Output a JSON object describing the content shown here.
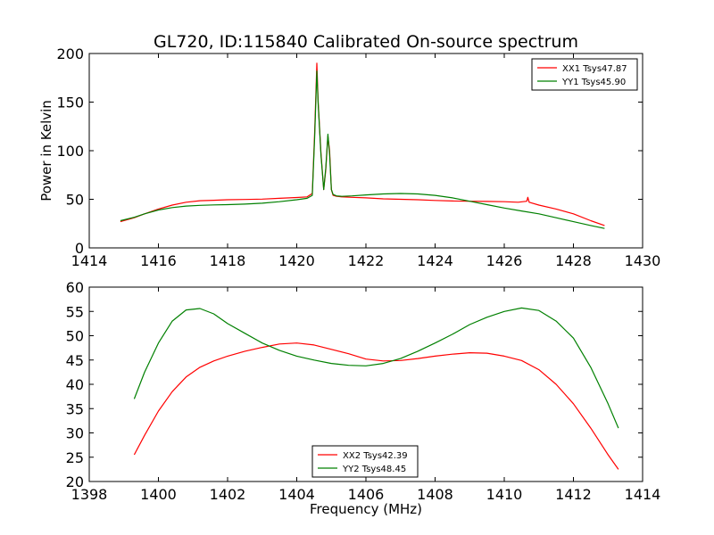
{
  "chart_data": [
    {
      "type": "line",
      "title": "GL720, ID:115840 Calibrated On-source spectrum",
      "ylabel": "Power in Kelvin",
      "xlabel": "",
      "xlim": [
        1414,
        1430
      ],
      "ylim": [
        0,
        200
      ],
      "xticks": [
        "1414",
        "1416",
        "1418",
        "1420",
        "1422",
        "1424",
        "1426",
        "1428",
        "1430"
      ],
      "yticks": [
        "0",
        "50",
        "100",
        "150",
        "200"
      ],
      "legend_position": "top-right",
      "series": [
        {
          "name": "XX1 Tsys47.87",
          "color": "#ff0000",
          "x": [
            1414.9,
            1415.3,
            1415.6,
            1416.0,
            1416.4,
            1416.8,
            1417.2,
            1417.6,
            1418.0,
            1418.5,
            1419.0,
            1419.5,
            1420.0,
            1420.3,
            1420.45,
            1420.52,
            1420.58,
            1420.62,
            1420.7,
            1420.78,
            1420.84,
            1420.9,
            1420.95,
            1421.0,
            1421.05,
            1421.15,
            1421.3,
            1421.6,
            1422.0,
            1422.5,
            1423.0,
            1423.5,
            1424.0,
            1424.5,
            1425.0,
            1425.5,
            1426.0,
            1426.4,
            1426.65,
            1426.68,
            1426.72,
            1427.0,
            1427.5,
            1428.0,
            1428.5,
            1428.9
          ],
          "y": [
            27,
            31,
            35,
            40,
            44,
            47,
            48.5,
            49,
            49.5,
            49.8,
            50.2,
            51,
            51.8,
            52.5,
            56,
            120,
            190,
            150,
            98,
            60,
            80,
            115,
            100,
            60,
            54,
            53,
            52.5,
            52,
            51.5,
            50.5,
            50,
            49.5,
            48.8,
            48.3,
            48,
            47.8,
            47.5,
            47,
            48,
            52,
            47,
            44,
            40,
            35,
            28,
            23
          ]
        },
        {
          "name": "YY1 Tsys45.90",
          "color": "#008000",
          "x": [
            1414.9,
            1415.3,
            1415.6,
            1416.0,
            1416.4,
            1416.8,
            1417.2,
            1417.6,
            1418.0,
            1418.5,
            1419.0,
            1419.5,
            1420.0,
            1420.3,
            1420.45,
            1420.52,
            1420.58,
            1420.62,
            1420.7,
            1420.78,
            1420.84,
            1420.9,
            1420.95,
            1421.0,
            1421.05,
            1421.15,
            1421.3,
            1421.6,
            1422.0,
            1422.5,
            1423.0,
            1423.5,
            1424.0,
            1424.5,
            1425.0,
            1425.5,
            1426.0,
            1426.5,
            1427.0,
            1427.5,
            1428.0,
            1428.5,
            1428.9
          ],
          "y": [
            28,
            31.5,
            35,
            39,
            41.5,
            43,
            43.8,
            44.2,
            44.5,
            45,
            46,
            47.5,
            49.5,
            51,
            54,
            115,
            182,
            148,
            96,
            60,
            82,
            117,
            96,
            60,
            55,
            53.5,
            53,
            53.5,
            54.5,
            55.5,
            56,
            55.5,
            54,
            51.5,
            48,
            44.5,
            41,
            38,
            35,
            31,
            27,
            23,
            20
          ]
        }
      ]
    },
    {
      "type": "line",
      "title": "",
      "xlabel": "Frequency (MHz)",
      "ylabel": "",
      "xlim": [
        1398,
        1414
      ],
      "ylim": [
        20,
        60
      ],
      "xticks": [
        "1398",
        "1400",
        "1402",
        "1404",
        "1406",
        "1408",
        "1410",
        "1412",
        "1414"
      ],
      "yticks": [
        "20",
        "25",
        "30",
        "35",
        "40",
        "45",
        "50",
        "55",
        "60"
      ],
      "legend_position": "lower-center",
      "series": [
        {
          "name": "XX2 Tsys42.39",
          "color": "#ff0000",
          "x": [
            1399.3,
            1399.6,
            1400.0,
            1400.4,
            1400.8,
            1401.2,
            1401.6,
            1402.0,
            1402.5,
            1403.0,
            1403.5,
            1404.0,
            1404.5,
            1405.0,
            1405.5,
            1406.0,
            1406.5,
            1407.0,
            1407.5,
            1408.0,
            1408.5,
            1409.0,
            1409.5,
            1410.0,
            1410.5,
            1411.0,
            1411.5,
            1412.0,
            1412.5,
            1413.0,
            1413.3
          ],
          "y": [
            25.5,
            29.5,
            34.5,
            38.5,
            41.5,
            43.5,
            44.8,
            45.8,
            46.8,
            47.6,
            48.3,
            48.5,
            48.1,
            47.2,
            46.3,
            45.2,
            44.8,
            44.9,
            45.3,
            45.8,
            46.2,
            46.5,
            46.4,
            45.8,
            44.9,
            43,
            40,
            36,
            31,
            25.5,
            22.5
          ]
        },
        {
          "name": "YY2 Tsys48.45",
          "color": "#008000",
          "x": [
            1399.3,
            1399.6,
            1400.0,
            1400.4,
            1400.8,
            1401.2,
            1401.6,
            1402.0,
            1402.5,
            1403.0,
            1403.5,
            1404.0,
            1404.5,
            1405.0,
            1405.5,
            1406.0,
            1406.5,
            1407.0,
            1407.5,
            1408.0,
            1408.5,
            1409.0,
            1409.5,
            1410.0,
            1410.5,
            1411.0,
            1411.5,
            1412.0,
            1412.5,
            1413.0,
            1413.3
          ],
          "y": [
            37,
            42.5,
            48.5,
            53,
            55.3,
            55.6,
            54.5,
            52.5,
            50.5,
            48.5,
            47,
            45.8,
            45,
            44.3,
            43.9,
            43.8,
            44.3,
            45.3,
            46.8,
            48.5,
            50.3,
            52.3,
            53.8,
            55,
            55.7,
            55.2,
            53,
            49.5,
            43.5,
            36,
            31
          ]
        }
      ]
    }
  ]
}
